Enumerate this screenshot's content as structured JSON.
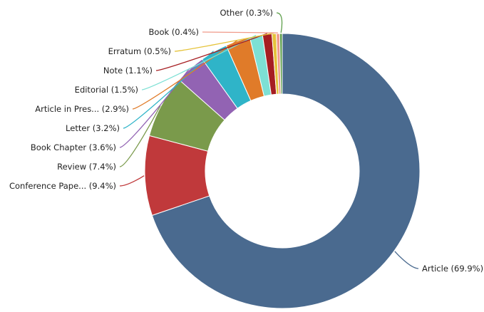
{
  "chart_data": {
    "type": "pie",
    "variant": "donut",
    "legend": "none",
    "categories": [
      "Article",
      "Conference Pape...",
      "Review",
      "Book Chapter",
      "Letter",
      "Article in Pres...",
      "Editorial",
      "Note",
      "Erratum",
      "Book",
      "Other"
    ],
    "values": [
      69.9,
      9.4,
      7.4,
      3.6,
      3.2,
      2.9,
      1.5,
      1.1,
      0.5,
      0.4,
      0.3
    ],
    "labels": [
      "Article (69.9%)",
      "Conference Pape... (9.4%)",
      "Review (7.4%)",
      "Book Chapter (3.6%)",
      "Letter (3.2%)",
      "Article in Pres... (2.9%)",
      "Editorial (1.5%)",
      "Note (1.1%)",
      "Erratum (0.5%)",
      "Book (0.4%)",
      "Other (0.3%)"
    ],
    "colors": [
      "#4a6a8f",
      "#c0393b",
      "#7a9a4b",
      "#9263b3",
      "#2fb4c8",
      "#e07b29",
      "#7de0d4",
      "#a61e22",
      "#e5c33a",
      "#f09a8a",
      "#5d9e4a"
    ]
  }
}
